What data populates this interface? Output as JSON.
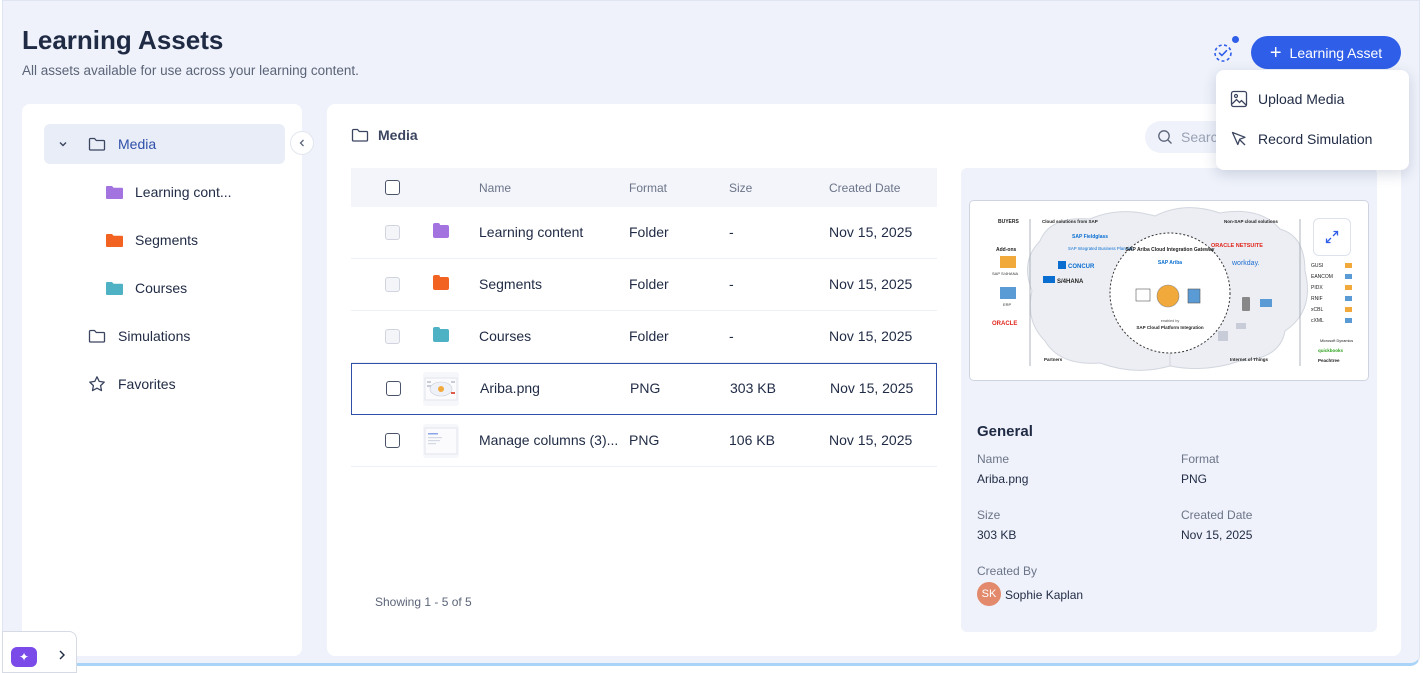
{
  "header": {
    "title": "Learning Assets",
    "subtitle": "All assets available for use across your learning content.",
    "add_button_label": "Learning Asset",
    "accent_color": "#2f5ee8"
  },
  "dropdown": {
    "items": [
      {
        "label": "Upload Media",
        "icon": "image-icon"
      },
      {
        "label": "Record Simulation",
        "icon": "cursor-icon"
      }
    ]
  },
  "sidebar": {
    "items": [
      {
        "label": "Media",
        "icon": "folder-icon",
        "expanded": true,
        "active": true
      },
      {
        "label": "Learning cont...",
        "icon": "folder-icon",
        "color": "#a374e0"
      },
      {
        "label": "Segments",
        "icon": "folder-icon",
        "color": "#f26322"
      },
      {
        "label": "Courses",
        "icon": "folder-icon",
        "color": "#4fb2c4"
      },
      {
        "label": "Simulations",
        "icon": "folder-icon"
      },
      {
        "label": "Favorites",
        "icon": "star-icon"
      }
    ]
  },
  "main": {
    "breadcrumb": "Media",
    "search_placeholder": "Search",
    "search_visible_text": "Searc",
    "columns": [
      "Name",
      "Format",
      "Size",
      "Created Date"
    ],
    "rows": [
      {
        "name": "Learning content",
        "format": "Folder",
        "size": "-",
        "created": "Nov 15, 2025",
        "type": "folder",
        "color": "#a374e0"
      },
      {
        "name": "Segments",
        "format": "Folder",
        "size": "-",
        "created": "Nov 15, 2025",
        "type": "folder",
        "color": "#f26322"
      },
      {
        "name": "Courses",
        "format": "Folder",
        "size": "-",
        "created": "Nov 15, 2025",
        "type": "folder",
        "color": "#4fb2c4"
      },
      {
        "name": "Ariba.png",
        "format": "PNG",
        "size": "303 KB",
        "created": "Nov 15, 2025",
        "type": "file",
        "selected": true
      },
      {
        "name": "Manage columns (3)...",
        "format": "PNG",
        "size": "106 KB",
        "created": "Nov 15, 2025",
        "type": "file"
      }
    ],
    "footer": "Showing 1 - 5 of 5"
  },
  "preview": {
    "section_title": "General",
    "name_label": "Name",
    "name_value": "Ariba.png",
    "format_label": "Format",
    "format_value": "PNG",
    "size_label": "Size",
    "size_value": "303 KB",
    "created_label": "Created Date",
    "created_value": "Nov 15, 2025",
    "created_by_label": "Created By",
    "author_initials": "SK",
    "author_name": "Sophie Kaplan",
    "diagram": {
      "top_left": "BUYERS",
      "cloud_sap": "Cloud solutions from SAP",
      "non_sap": "Non-SAP cloud solutions",
      "addons": "Add-ons",
      "s4hana_small": "SAP S/4HANA",
      "erp": "ERP",
      "oracle": "ORACLE",
      "fieldglass": "SAP Fieldglass",
      "ibp": "SAP Integrated Business Planning",
      "concur": "CONCUR",
      "s4hana": "S/4HANA",
      "gateway": "SAP Ariba Cloud Integration Gateway",
      "ariba": "SAP Ariba",
      "enabled_by": "enabled by",
      "cpi": "SAP Cloud Platform Integration",
      "oracle_netsuite": "ORACLE NETSUITE",
      "workday": "workday.",
      "partners": "Partners",
      "iot": "Internet of Things",
      "standards": [
        "GUSI",
        "EANCOM",
        "PIDX",
        "RNIF",
        "xCBL",
        "cXML"
      ],
      "ms_dynamics": "Microsoft Dynamics",
      "quickbooks": "quickbooks",
      "peachtree": "Peachtree"
    }
  }
}
